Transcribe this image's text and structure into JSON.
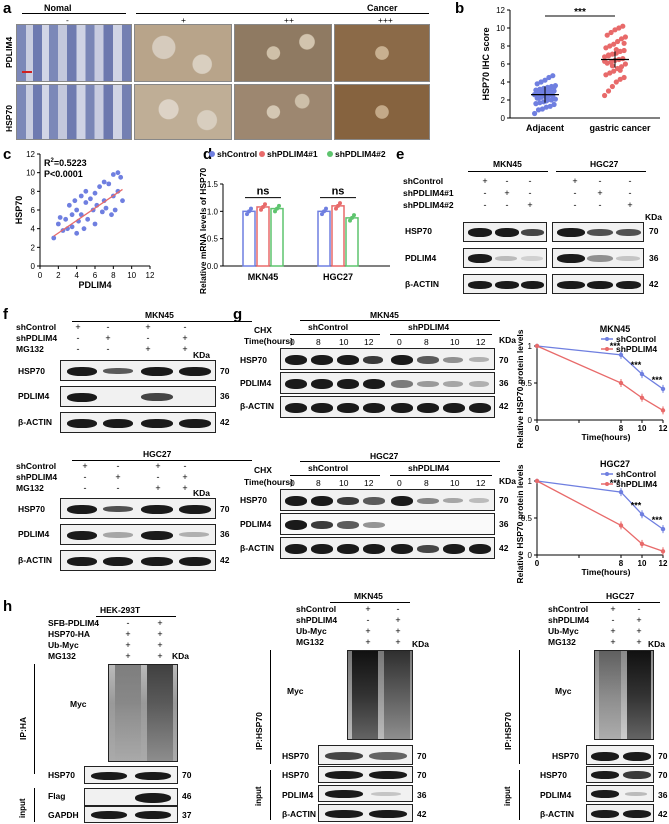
{
  "panels": {
    "a": "a",
    "b": "b",
    "c": "c",
    "d": "d",
    "e": "e",
    "f": "f",
    "g": "g",
    "h": "h"
  },
  "a": {
    "nomal": "Nomal",
    "cancer": "Cancer",
    "grades": [
      "-",
      "+",
      "++",
      "+++"
    ],
    "rows": [
      "PDLIM4",
      "HSP70"
    ]
  },
  "b": {
    "ylabel": "HSP70 IHC score",
    "xlabels": [
      "Adjacent",
      "gastric cancer"
    ],
    "yticks": [
      "0",
      "2",
      "4",
      "6",
      "8",
      "10",
      "12"
    ],
    "sig": "***"
  },
  "c": {
    "r2": "R",
    "r2sup": "2",
    "r2val": "=0.5223",
    "p": "P<0.0001",
    "xlabel": "PDLIM4",
    "ylabel": "HSP70",
    "xticks": [
      "0",
      "2",
      "4",
      "6",
      "8",
      "10",
      "12"
    ],
    "yticks": [
      "0",
      "2",
      "4",
      "6",
      "8",
      "10",
      "12"
    ]
  },
  "d": {
    "ylabel": "Relative mRNA levels of HSP70",
    "legend": [
      "shControl",
      "shPDLIM4#1",
      "shPDLIM4#2"
    ],
    "groups": [
      "MKN45",
      "HGC27"
    ],
    "yticks": [
      "0.0",
      "0.5",
      "1.0",
      "1.5"
    ],
    "ns": "ns"
  },
  "e": {
    "cells": [
      "MKN45",
      "HGC27"
    ],
    "conds": [
      "shControl",
      "shPDLIM4#1",
      "shPDLIM4#2"
    ],
    "rows": [
      "HSP70",
      "PDLIM4",
      "β-ACTIN"
    ],
    "kda": [
      "70",
      "36",
      "42"
    ],
    "kdalabel": "KDa"
  },
  "f": {
    "cells": [
      "MKN45",
      "HGC27"
    ],
    "conds": [
      "shControl",
      "shPDLIM4",
      "MG132"
    ],
    "rows": [
      "HSP70",
      "PDLIM4",
      "β-ACTIN"
    ],
    "kda": [
      "70",
      "36",
      "42"
    ],
    "kdalabel": "KDa"
  },
  "g": {
    "cells": [
      "MKN45",
      "HGC27"
    ],
    "chx": "CHX",
    "time": "Time(hours)",
    "groups": [
      "shControl",
      "shPDLIM4"
    ],
    "times": [
      "0",
      "8",
      "10",
      "12"
    ],
    "rows": [
      "HSP70",
      "PDLIM4",
      "β-ACTIN"
    ],
    "kda": [
      "70",
      "36",
      "42"
    ],
    "kdalabel": "KDa",
    "chart_ylabel": "Relative HSP70 protein levels",
    "chart_xlabel": "Time(hours)",
    "sig": "***"
  },
  "h": {
    "c1": {
      "title": "HEK-293T",
      "conds": [
        "SFB-PDLIM4",
        "HSP70-HA",
        "Ub-Myc",
        "MG132"
      ],
      "ip": "IP:HA",
      "input": "input",
      "rows": [
        "Myc",
        "HSP70",
        "Flag",
        "GAPDH"
      ],
      "kda": [
        "70",
        "46",
        "37"
      ]
    },
    "c2": {
      "title": "MKN45",
      "conds": [
        "shControl",
        "shPDLIM4",
        "Ub-Myc",
        "MG132"
      ],
      "ip": "IP:HSP70",
      "input": "input",
      "rows": [
        "Myc",
        "HSP70",
        "HSP70",
        "PDLIM4",
        "β-ACTIN"
      ],
      "kda": [
        "70",
        "70",
        "36",
        "42"
      ]
    },
    "c3": {
      "title": "HGC27",
      "conds": [
        "shControl",
        "shPDLIM4",
        "Ub-Myc",
        "MG132"
      ],
      "ip": "IP:HSP70",
      "input": "input",
      "rows": [
        "Myc",
        "HSP70",
        "HSP70",
        "PDLIM4",
        "β-ACTIN"
      ],
      "kda": [
        "70",
        "70",
        "36",
        "42"
      ]
    },
    "kdalabel": "KDa"
  },
  "colors": {
    "blue": "#6f7fe0",
    "red": "#e86a6a",
    "green": "#5ec46e",
    "ihcblue": "#8f9bc4",
    "ihcbrown": "#a98560"
  },
  "chart_data": [
    {
      "type": "scatter",
      "panel": "b",
      "ylabel": "HSP70 IHC score",
      "categories": [
        "Adjacent",
        "gastric cancer"
      ],
      "ylim": [
        0,
        12
      ],
      "series": [
        {
          "name": "Adjacent",
          "values": [
            0.5,
            0.9,
            1.0,
            1.2,
            1.3,
            1.5,
            1.6,
            1.7,
            1.8,
            2.0,
            2.0,
            2.1,
            2.2,
            2.3,
            2.4,
            2.5,
            2.5,
            2.6,
            2.7,
            2.8,
            2.9,
            3.0,
            3.0,
            3.1,
            3.2,
            3.3,
            3.4,
            3.5,
            3.6,
            3.8,
            4.0,
            4.2,
            4.5,
            4.7,
            2.6,
            2.2,
            3.1,
            1.9,
            2.8,
            3.4
          ]
        },
        {
          "name": "gastric cancer",
          "values": [
            2.5,
            3.0,
            3.5,
            4.0,
            4.3,
            4.5,
            4.8,
            5.0,
            5.2,
            5.5,
            5.7,
            6.0,
            6.1,
            6.2,
            6.4,
            6.5,
            6.6,
            6.8,
            7.0,
            7.1,
            7.2,
            7.4,
            7.5,
            7.8,
            8.0,
            8.2,
            8.5,
            8.8,
            9.0,
            9.2,
            9.5,
            9.8,
            10.0,
            10.2,
            6.3,
            6.9,
            5.8,
            7.6,
            5.3,
            8.3
          ]
        }
      ],
      "means": [
        2.6,
        6.5
      ]
    },
    {
      "type": "scatter",
      "panel": "c",
      "xlabel": "PDLIM4",
      "ylabel": "HSP70",
      "xlim": [
        0,
        12
      ],
      "ylim": [
        0,
        12
      ],
      "x": [
        1.5,
        2.0,
        2.2,
        2.5,
        2.8,
        3.0,
        3.2,
        3.5,
        3.5,
        3.8,
        4.0,
        4.0,
        4.2,
        4.5,
        4.5,
        4.8,
        5.0,
        5.0,
        5.2,
        5.5,
        5.8,
        6.0,
        6.0,
        6.2,
        6.5,
        6.8,
        7.0,
        7.0,
        7.2,
        7.5,
        7.8,
        8.0,
        8.0,
        8.2,
        8.5,
        8.5,
        8.8,
        9.0
      ],
      "y": [
        3.0,
        4.5,
        5.2,
        3.8,
        5.0,
        4.0,
        6.5,
        4.2,
        5.5,
        7.0,
        3.5,
        6.0,
        4.8,
        7.5,
        5.5,
        4.0,
        6.8,
        8.0,
        5.0,
        7.2,
        6.0,
        4.5,
        7.8,
        6.5,
        8.5,
        5.8,
        9.0,
        7.0,
        6.2,
        8.8,
        5.5,
        9.8,
        7.5,
        6.0,
        10.0,
        8.0,
        9.5,
        7.0
      ],
      "fit": {
        "x": [
          1.5,
          9.0
        ],
        "y": [
          3.2,
          8.2
        ]
      }
    },
    {
      "type": "bar",
      "panel": "d",
      "categories": [
        "MKN45",
        "HGC27"
      ],
      "ylim": [
        0,
        1.5
      ],
      "series": [
        {
          "name": "shControl",
          "values": [
            1.0,
            1.0
          ]
        },
        {
          "name": "shPDLIM4#1",
          "values": [
            1.08,
            1.1
          ]
        },
        {
          "name": "shPDLIM4#2",
          "values": [
            1.05,
            0.88
          ]
        }
      ]
    },
    {
      "type": "line",
      "panel": "g-MKN45",
      "title": "MKN45",
      "x": [
        0,
        8,
        10,
        12
      ],
      "xlabel": "Time(hours)",
      "ylim": [
        0,
        1
      ],
      "series": [
        {
          "name": "shControl",
          "values": [
            1.0,
            0.88,
            0.62,
            0.42
          ]
        },
        {
          "name": "shPDLIM4",
          "values": [
            1.0,
            0.5,
            0.3,
            0.13
          ]
        }
      ]
    },
    {
      "type": "line",
      "panel": "g-HGC27",
      "title": "HGC27",
      "x": [
        0,
        8,
        10,
        12
      ],
      "xlabel": "Time(hours)",
      "ylim": [
        0,
        1
      ],
      "series": [
        {
          "name": "shControl",
          "values": [
            1.0,
            0.85,
            0.55,
            0.35
          ]
        },
        {
          "name": "shPDLIM4",
          "values": [
            1.0,
            0.4,
            0.15,
            0.05
          ]
        }
      ]
    }
  ]
}
